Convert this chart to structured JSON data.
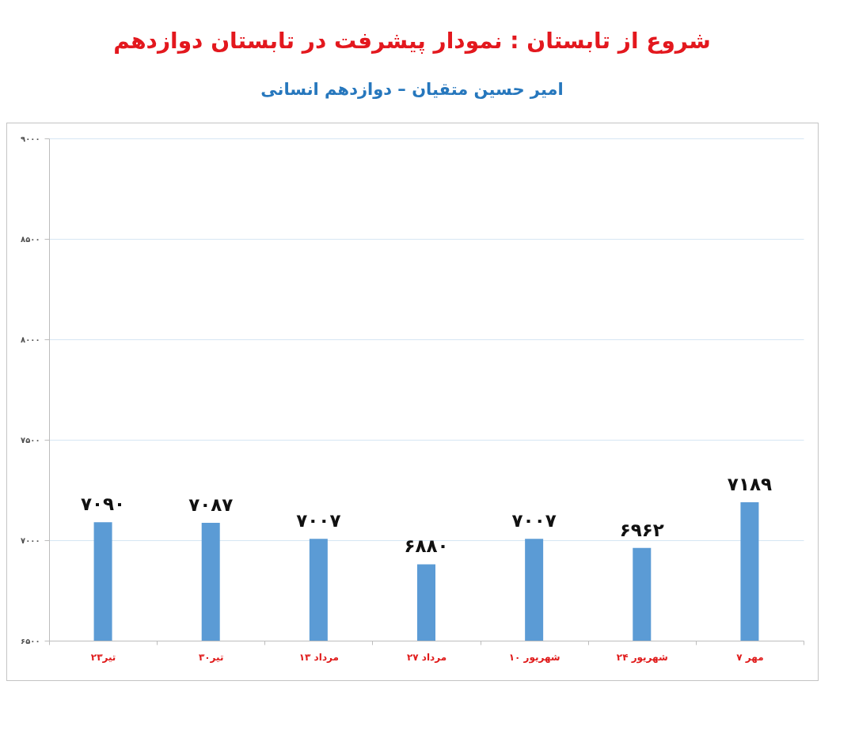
{
  "chart_data": {
    "type": "bar",
    "title": "شروع از تابستان : نمودار پیشرفت در تابستان دوازدهم",
    "subtitle": "امیر حسین متقیان – دوازدهم انسانی",
    "categories": [
      "۲۳تیر",
      "۳۰تیر",
      "۱۳ مرداد",
      "۲۷ مرداد",
      "۱۰ شهریور",
      "۲۴ شهریور",
      "۷ مهر"
    ],
    "values": [
      7090,
      7087,
      7007,
      6880,
      7007,
      6962,
      7189
    ],
    "value_labels": [
      "۷۰۹۰",
      "۷۰۸۷",
      "۷۰۰۷",
      "۶۸۸۰",
      "۷۰۰۷",
      "۶۹۶۲",
      "۷۱۸۹"
    ],
    "color": "#5b9bd5",
    "ylim": [
      6500,
      9000
    ],
    "yticks": [
      {
        "value": 6500,
        "label": "۶۵۰۰"
      },
      {
        "value": 7000,
        "label": "۷۰۰۰"
      },
      {
        "value": 7500,
        "label": "۷۵۰۰"
      },
      {
        "value": 8000,
        "label": "۸۰۰۰"
      },
      {
        "value": 8500,
        "label": "۸۵۰۰"
      },
      {
        "value": 9000,
        "label": "۹۰۰۰"
      }
    ],
    "grid": "y"
  }
}
